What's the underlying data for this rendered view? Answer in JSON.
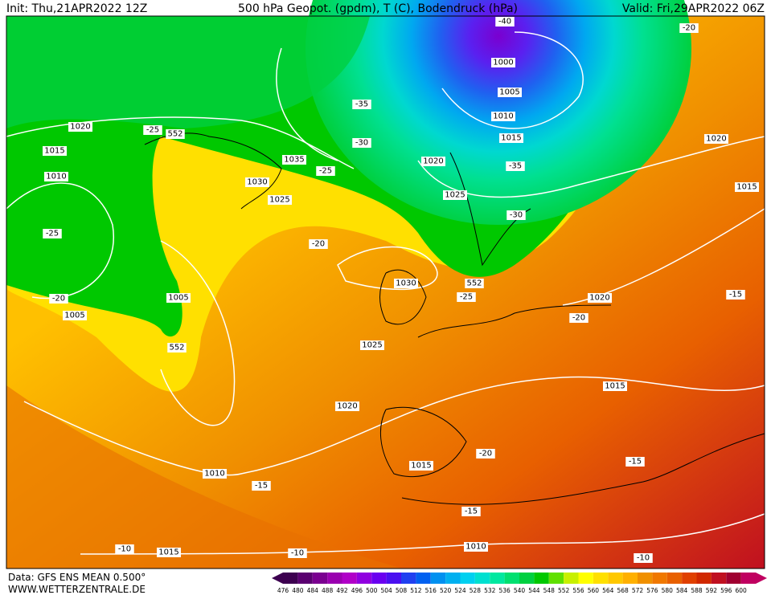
{
  "header": {
    "init": "Init: Thu,21APR2022 12Z",
    "title": "500 hPa Geopot. (gpdm), T (C), Bodendruck (hPa)",
    "valid": "Valid: Fri,29APR2022 06Z"
  },
  "footer": {
    "data": "Data: GFS ENS MEAN 0.500°",
    "site": "WWW.WETTERZENTRALE.DE"
  },
  "scale": {
    "values": [
      476,
      480,
      484,
      488,
      492,
      496,
      500,
      504,
      508,
      512,
      516,
      520,
      524,
      528,
      532,
      536,
      540,
      544,
      548,
      552,
      556,
      560,
      564,
      568,
      572,
      576,
      580,
      584,
      588,
      592,
      596,
      600
    ],
    "colors": [
      "#3d0050",
      "#5a0070",
      "#7a0090",
      "#9a00b0",
      "#b000c8",
      "#9000e0",
      "#6a00f0",
      "#4a10f0",
      "#2040f0",
      "#0060f0",
      "#0090f0",
      "#00b0f0",
      "#00d0f0",
      "#00e0d0",
      "#00e8a0",
      "#00e070",
      "#00d040",
      "#00c800",
      "#60e000",
      "#c8f000",
      "#ffff00",
      "#ffe000",
      "#ffc800",
      "#ffb000",
      "#f09000",
      "#f07800",
      "#e86000",
      "#e04000",
      "#d02800",
      "#c01020",
      "#a00030",
      "#c00060"
    ]
  },
  "map": {
    "labels": [
      "1020",
      "1015",
      "1010",
      "-25",
      "-20",
      "1005",
      "1005",
      "552",
      "552",
      "-25",
      "1035",
      "1030",
      "-25",
      "1025",
      "-30",
      "-35",
      "-40",
      "1000",
      "1005",
      "1010",
      "1015",
      "-35",
      "1020",
      "1025",
      "-30",
      "-20",
      "1030",
      "552",
      "-25",
      "1025",
      "1020",
      "1020",
      "-20",
      "1015",
      "-20",
      "1015",
      "1010",
      "-15",
      "-15",
      "-15",
      "1010",
      "-10",
      "1015",
      "-10",
      "-10",
      "-20",
      "1020",
      "1015",
      "-15"
    ]
  }
}
